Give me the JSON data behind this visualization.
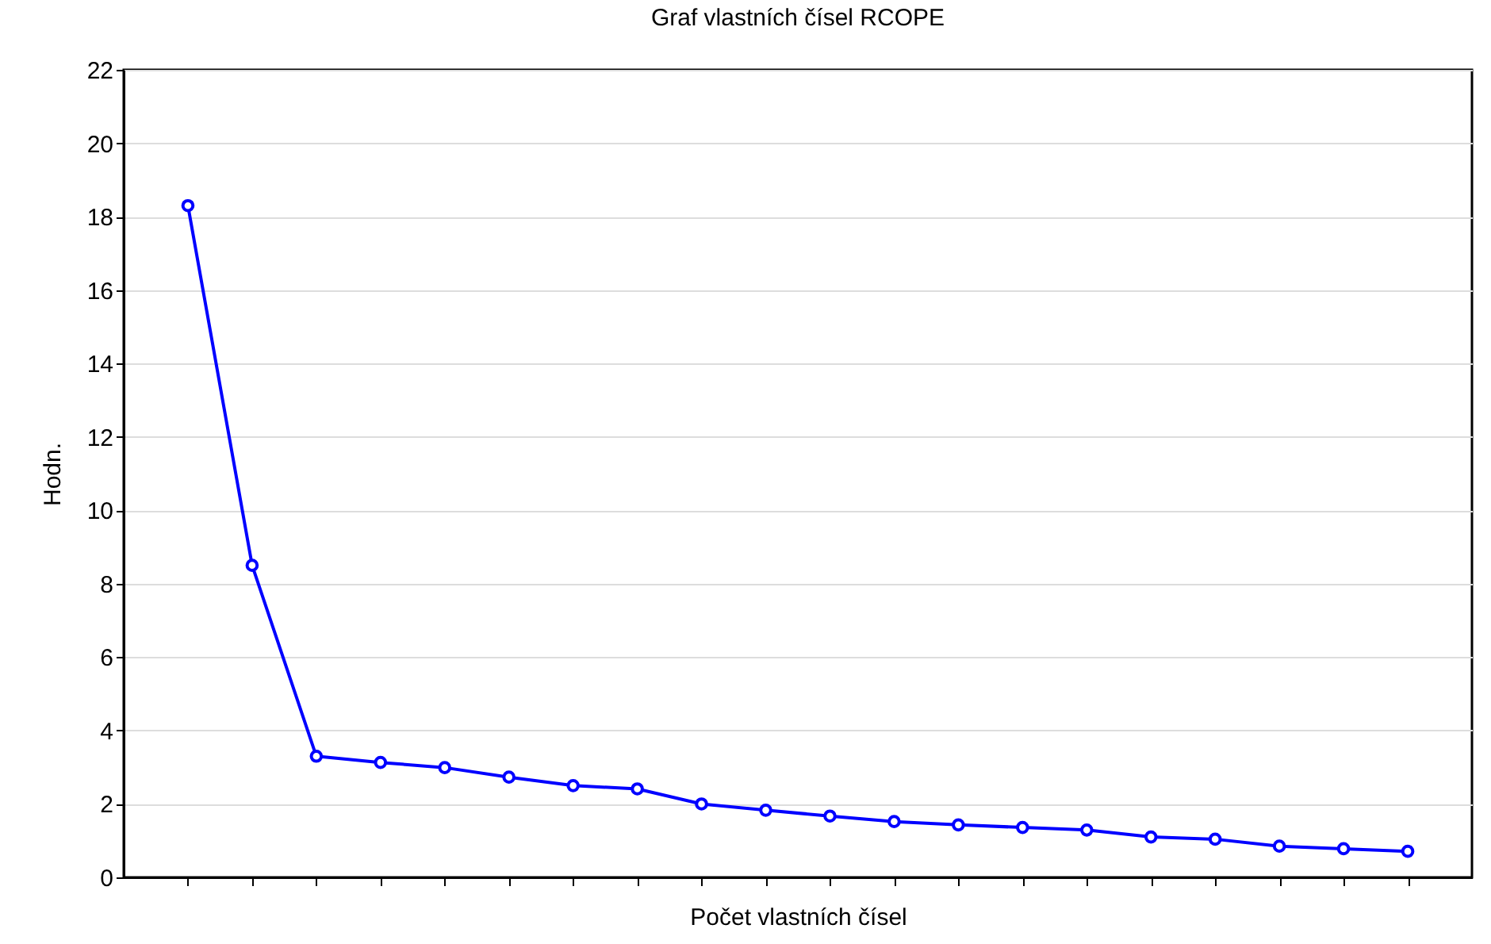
{
  "chart_data": {
    "type": "line",
    "title": "Graf vlastních čísel RCOPE",
    "xlabel": "Počet vlastních čísel",
    "ylabel": "Hodn.",
    "categories": [
      null,
      null,
      null,
      null,
      null,
      null,
      null,
      null,
      null,
      null,
      null,
      null,
      null,
      null,
      null,
      null,
      null,
      null,
      null,
      null
    ],
    "series": [
      {
        "color": "#0000ff",
        "values": [
          18.3,
          8.5,
          3.3,
          3.13,
          2.99,
          2.73,
          2.5,
          2.41,
          2.0,
          1.83,
          1.67,
          1.52,
          1.43,
          1.36,
          1.29,
          1.1,
          1.04,
          0.85,
          0.78,
          0.71
        ]
      }
    ],
    "ylim": [
      0,
      22
    ],
    "yticks": [
      0,
      2,
      4,
      6,
      8,
      10,
      12,
      14,
      16,
      18,
      20,
      22
    ],
    "grid": "y",
    "tick_labels": "y",
    "marker": "circle",
    "line_style": "solid",
    "legend": false
  }
}
